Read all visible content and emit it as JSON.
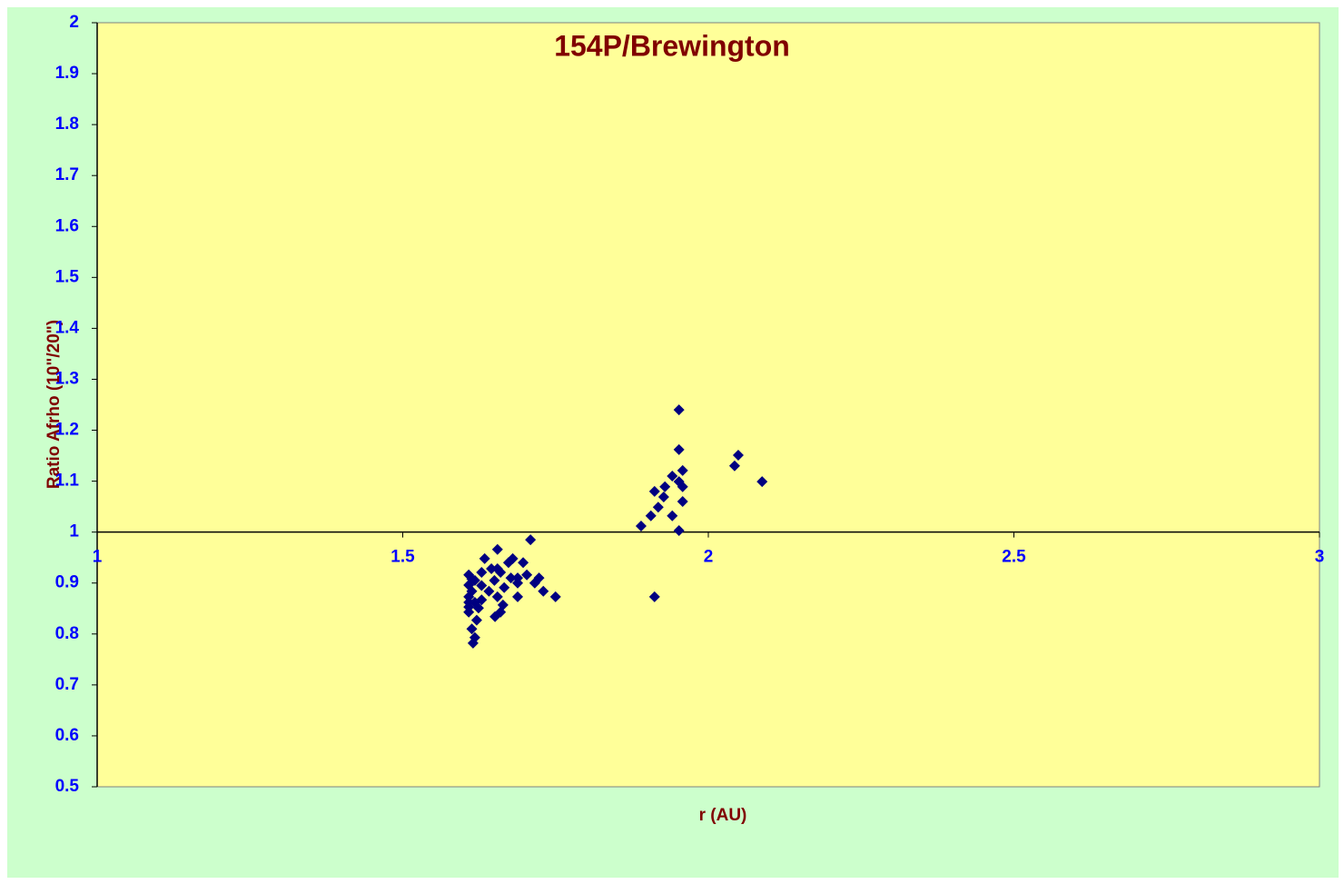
{
  "chart_data": {
    "type": "scatter",
    "title": "154P/Brewington",
    "x_label": "r (AU)",
    "y_label": "Ratio Afrho (10\"/20\")",
    "xlim": [
      1,
      3
    ],
    "ylim": [
      0.5,
      2
    ],
    "xticks": [
      1,
      1.5,
      2,
      2.5,
      3
    ],
    "yticks": [
      0.5,
      0.6,
      0.7,
      0.8,
      0.9,
      1,
      1.1,
      1.2,
      1.3,
      1.4,
      1.5,
      1.6,
      1.7,
      1.8,
      1.9,
      2
    ],
    "x_axis_crosses": 1,
    "series": [
      {
        "color": "#000080",
        "x": [
          1.952,
          1.952,
          2.049,
          2.043,
          2.088,
          1.958,
          1.941,
          1.929,
          1.952,
          1.958,
          1.912,
          1.927,
          1.958,
          1.918,
          1.906,
          1.941,
          1.89,
          1.952,
          1.912,
          1.709,
          1.655,
          1.634,
          1.68,
          1.673,
          1.697,
          1.645,
          1.655,
          1.629,
          1.66,
          1.608,
          1.723,
          1.677,
          1.688,
          1.703,
          1.65,
          1.618,
          1.716,
          1.688,
          1.608,
          1.629,
          1.666,
          1.641,
          1.73,
          1.613,
          1.75,
          1.688,
          1.655,
          1.608,
          1.629,
          1.618,
          1.608,
          1.664,
          1.624,
          1.66,
          1.608,
          1.651,
          1.621,
          1.613,
          1.618,
          1.615,
          1.608,
          1.613
        ],
        "values": [
          1.24,
          1.162,
          1.151,
          1.13,
          1.099,
          1.121,
          1.11,
          1.089,
          1.099,
          1.089,
          1.08,
          1.069,
          1.06,
          1.049,
          1.032,
          1.032,
          1.012,
          1.003,
          0.873,
          0.985,
          0.966,
          0.948,
          0.948,
          0.94,
          0.94,
          0.928,
          0.928,
          0.921,
          0.921,
          0.916,
          0.91,
          0.91,
          0.91,
          0.916,
          0.905,
          0.905,
          0.9,
          0.9,
          0.896,
          0.895,
          0.891,
          0.884,
          0.884,
          0.884,
          0.873,
          0.873,
          0.873,
          0.873,
          0.867,
          0.862,
          0.862,
          0.857,
          0.851,
          0.843,
          0.843,
          0.834,
          0.827,
          0.81,
          0.793,
          0.782,
          0.853,
          0.908
        ]
      }
    ]
  }
}
